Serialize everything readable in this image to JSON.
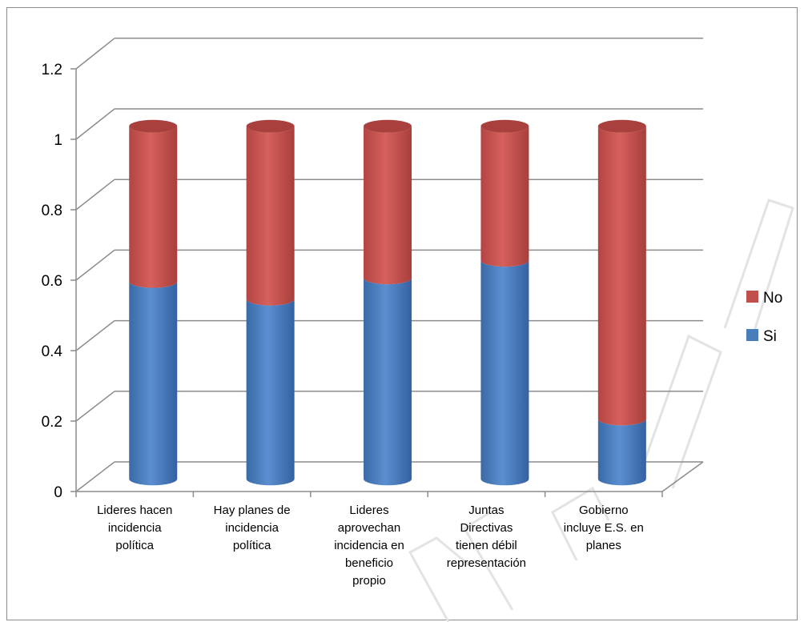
{
  "chart_data": {
    "type": "bar",
    "stacked": true,
    "style": "3d-cylinder",
    "categories": [
      [
        "Lideres  hacen",
        "incidencia",
        "política"
      ],
      [
        "Hay planes de",
        "incidencia",
        "política"
      ],
      [
        "Lideres",
        "aprovechan",
        "incidencia en",
        "beneficio",
        "propio"
      ],
      [
        "Juntas",
        "Directivas",
        "tienen débil",
        "representación"
      ],
      [
        "Gobierno",
        "incluye E.S. en",
        "planes"
      ]
    ],
    "series": [
      {
        "name": "Si",
        "values": [
          0.56,
          0.51,
          0.57,
          0.62,
          0.17
        ],
        "color": "#4a7ebb"
      },
      {
        "name": "No",
        "values": [
          0.44,
          0.49,
          0.43,
          0.38,
          0.83
        ],
        "color": "#c0504d"
      }
    ],
    "yticks": [
      "0",
      "0.2",
      "0.4",
      "0.6",
      "0.8",
      "1",
      "1.2"
    ],
    "ylim": [
      0,
      1.2
    ],
    "grid": true,
    "legend_position": "right",
    "legend_order": [
      "No",
      "Si"
    ],
    "watermark_text": "TESIS UNAH"
  }
}
